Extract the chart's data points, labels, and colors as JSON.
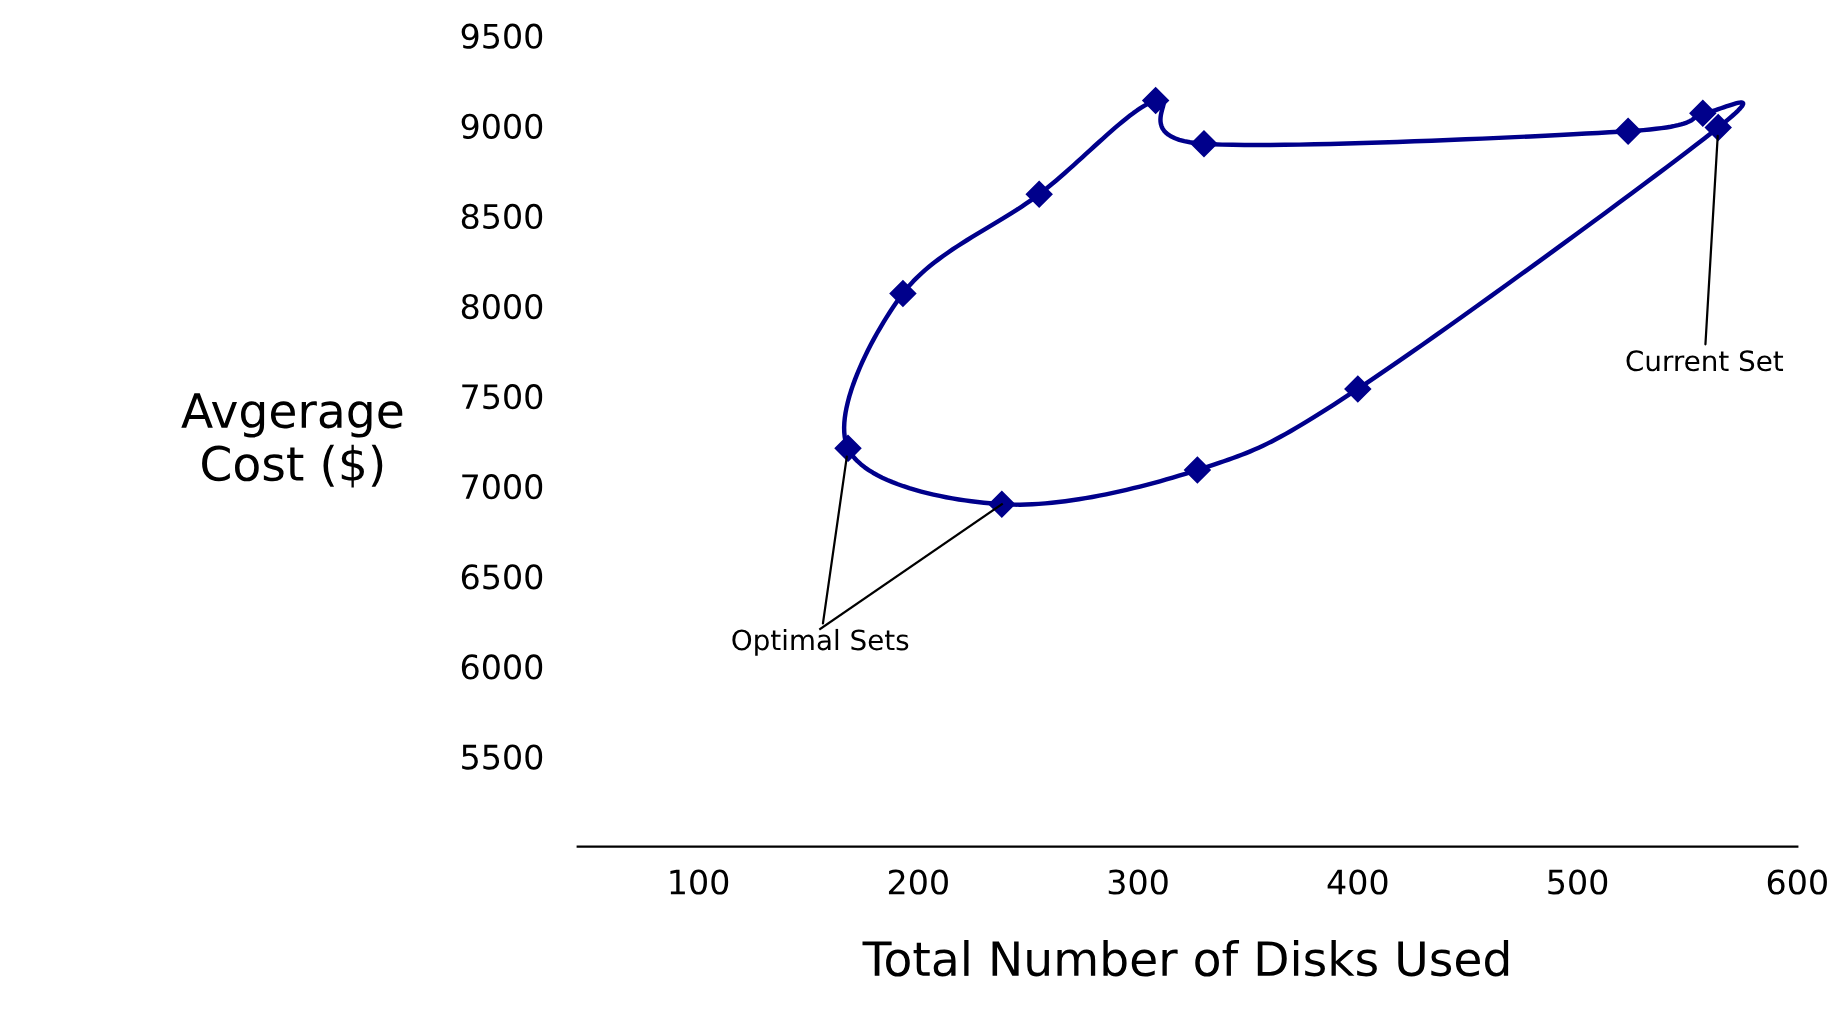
{
  "chart_data": {
    "type": "scatter",
    "xlabel": "Total Number of Disks Used",
    "ylabel": "Avgerage\nCost ($)",
    "x": [
      168,
      193,
      255,
      308,
      330,
      523,
      557,
      564,
      400,
      327,
      238
    ],
    "series": [
      {
        "color": "#00008b",
        "values": [
          7210,
          8070,
          8620,
          9140,
          8900,
          8970,
          9070,
          8990,
          7540,
          7090,
          6900
        ]
      }
    ],
    "xlim": [
      45,
      600
    ],
    "ylim": [
      5000,
      9500
    ],
    "xticks": [
      100,
      200,
      300,
      400,
      500,
      600
    ],
    "yticks": [
      5500,
      6000,
      6500,
      7000,
      7500,
      8000,
      8500,
      9000,
      9500
    ],
    "grid": false,
    "legend": false,
    "marker": "diamond",
    "line_style": "solid",
    "annotations": [
      {
        "text": "Current Set",
        "x": 564,
        "y": 8990
      },
      {
        "text": "Optimal Sets",
        "x": 168,
        "y": 7210
      }
    ]
  }
}
